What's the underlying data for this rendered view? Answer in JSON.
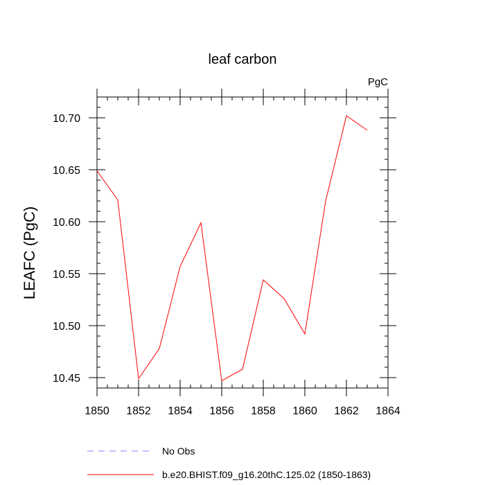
{
  "chart_data": {
    "type": "line",
    "title": "leaf carbon",
    "units_label": "PgC",
    "xlabel": "",
    "ylabel": "LEAFC  (PgC)",
    "xlim": [
      1850,
      1864
    ],
    "ylim": [
      10.44,
      10.72
    ],
    "x_ticks": [
      1850,
      1852,
      1854,
      1856,
      1858,
      1860,
      1862,
      1864
    ],
    "y_ticks": [
      "10.45",
      "10.50",
      "10.55",
      "10.60",
      "10.65",
      "10.70"
    ],
    "grid": false,
    "series": [
      {
        "name": "b.e20.BHIST.f09_g16.20thC.125.02 (1850-1863)",
        "color": "#ff0000",
        "dash": "solid",
        "x": [
          1850,
          1851,
          1852,
          1853,
          1854,
          1855,
          1856,
          1857,
          1858,
          1859,
          1860,
          1861,
          1862,
          1863
        ],
        "values": [
          10.649,
          10.621,
          10.449,
          10.478,
          10.557,
          10.599,
          10.447,
          10.458,
          10.544,
          10.526,
          10.492,
          10.62,
          10.702,
          10.688
        ]
      }
    ],
    "legend": [
      {
        "label": "No Obs",
        "color": "#8080ff",
        "dash": "dashed"
      },
      {
        "label": "b.e20.BHIST.f09_g16.20thC.125.02 (1850-1863)",
        "color": "#ff0000",
        "dash": "solid"
      }
    ]
  }
}
